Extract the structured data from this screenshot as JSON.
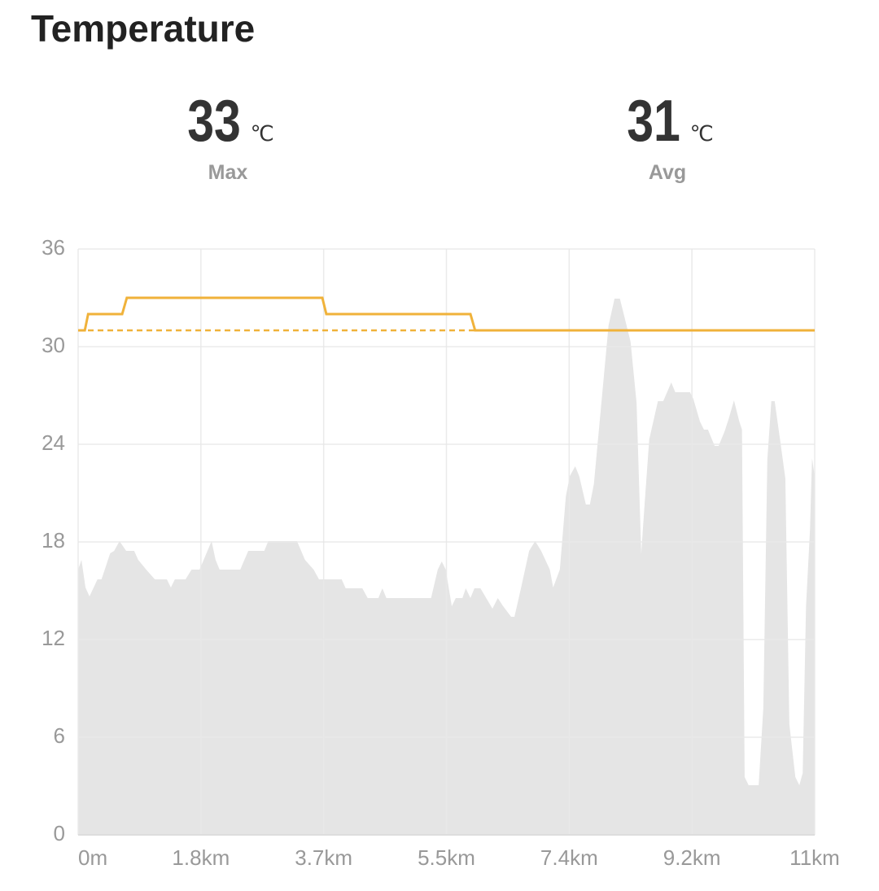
{
  "title": "Temperature",
  "stats": [
    {
      "value": 33,
      "unit": "℃",
      "label": "Max"
    },
    {
      "value": 31,
      "unit": "℃",
      "label": "Avg"
    }
  ],
  "chart_data": {
    "type": "area-line",
    "series": [
      {
        "type": "area",
        "color": "#e5e5e5",
        "x": [
          0,
          0.05,
          0.11,
          0.17,
          0.29,
          0.35,
          0.48,
          0.54,
          0.62,
          0.72,
          0.84,
          0.9,
          1.02,
          1.15,
          1.33,
          1.39,
          1.45,
          1.61,
          1.7,
          1.82,
          2.0,
          2.06,
          2.12,
          2.43,
          2.55,
          2.79,
          2.85,
          3.28,
          3.4,
          3.53,
          3.61,
          3.95,
          4.01,
          4.26,
          4.34,
          4.5,
          4.56,
          4.62,
          5.29,
          5.39,
          5.45,
          5.51,
          5.6,
          5.66,
          5.76,
          5.81,
          5.88,
          5.94,
          6.03,
          6.21,
          6.29,
          6.37,
          6.49,
          6.54,
          6.64,
          6.76,
          6.85,
          6.94,
          7.07,
          7.12,
          7.22,
          7.31,
          7.37,
          7.45,
          7.51,
          7.61,
          7.67,
          7.73,
          7.86,
          7.95,
          8.04,
          8.12,
          8.22,
          8.28,
          8.37,
          8.44,
          8.49,
          8.56,
          8.69,
          8.77,
          8.89,
          8.95,
          9.17,
          9.22,
          9.32,
          9.38,
          9.44,
          9.54,
          9.6,
          9.69,
          9.75,
          9.83,
          9.91,
          9.95,
          9.99,
          10.05,
          10.2,
          10.27,
          10.33,
          10.39,
          10.44,
          10.52,
          10.6,
          10.66,
          10.75,
          10.81,
          10.86,
          10.91,
          10.97,
          11.0,
          11.04
        ],
        "values": [
          16.3,
          16.9,
          15.2,
          14.65,
          15.7,
          15.7,
          17.3,
          17.45,
          18.05,
          17.45,
          17.45,
          16.9,
          16.3,
          15.7,
          15.7,
          15.2,
          15.7,
          15.7,
          16.3,
          16.3,
          18.05,
          16.9,
          16.3,
          16.3,
          17.45,
          17.45,
          18.05,
          18.05,
          16.9,
          16.3,
          15.7,
          15.7,
          15.15,
          15.15,
          14.55,
          14.55,
          15.15,
          14.55,
          14.55,
          16.3,
          16.8,
          16.3,
          14.05,
          14.55,
          14.55,
          15.15,
          14.55,
          15.15,
          15.15,
          13.9,
          14.55,
          14.05,
          13.4,
          13.4,
          15.2,
          17.45,
          18.05,
          17.45,
          16.3,
          15.2,
          16.3,
          20.8,
          22.05,
          22.65,
          22.05,
          20.3,
          20.3,
          21.55,
          27.3,
          31.3,
          32.95,
          32.95,
          31.3,
          30.3,
          26.55,
          17.3,
          20.3,
          24.3,
          26.65,
          26.65,
          27.8,
          27.2,
          27.2,
          26.8,
          25.4,
          24.9,
          24.9,
          23.9,
          23.9,
          24.8,
          25.55,
          26.7,
          25.4,
          24.9,
          3.55,
          3.05,
          3.05,
          7.8,
          23.05,
          26.65,
          26.65,
          24.3,
          21.9,
          6.8,
          3.55,
          3.05,
          3.8,
          14.05,
          18.8,
          23.15,
          22.05
        ]
      },
      {
        "type": "line",
        "color": "#f0b23a",
        "x": [
          0,
          0.1,
          0.15,
          0.66,
          0.73,
          3.66,
          3.72,
          5.88,
          5.95,
          11.04
        ],
        "values": [
          31,
          31,
          32,
          32,
          33,
          33,
          32,
          32,
          31,
          31
        ]
      }
    ],
    "average_line": {
      "color": "#f0b23a",
      "style": "dashed"
    },
    "xlim": [
      0,
      11.04
    ],
    "xticks": [
      {
        "value": 0,
        "label": "0m"
      },
      {
        "value": 1.84,
        "label": "1.8km"
      },
      {
        "value": 3.68,
        "label": "3.7km"
      },
      {
        "value": 5.52,
        "label": "5.5km"
      },
      {
        "value": 7.36,
        "label": "7.4km"
      },
      {
        "value": 9.2,
        "label": "9.2km"
      },
      {
        "value": 11.04,
        "label": "11km"
      }
    ],
    "ylim": [
      0,
      36
    ],
    "yticks": [
      0,
      6,
      12,
      18,
      24,
      30,
      36
    ],
    "grid": true
  }
}
